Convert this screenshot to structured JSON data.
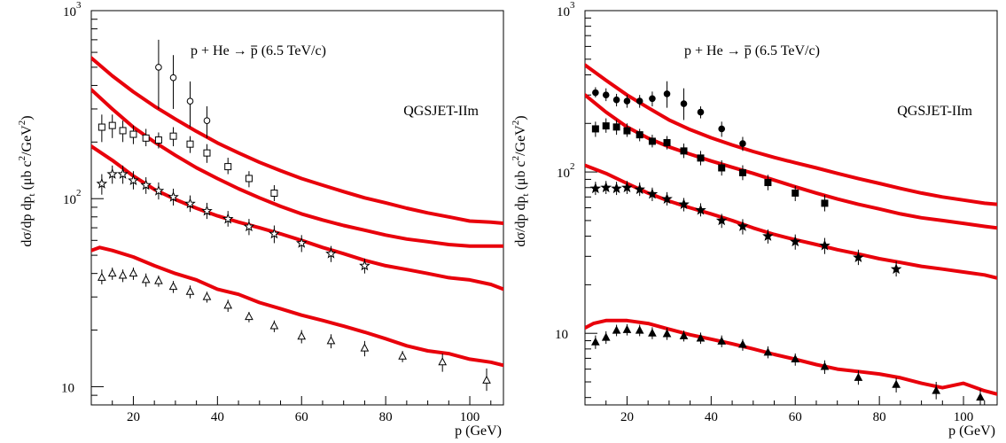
{
  "chart_data": [
    {
      "type": "scatter",
      "panel": "left",
      "title": "p + He → p̄ (6.5 TeV/c)",
      "model_label": "QGSJET-IIm",
      "xlabel": "p (GeV)",
      "ylabel": "dσ/dp dpt (μb c²/GeV²)",
      "xlim": [
        10,
        108
      ],
      "ylim": [
        8,
        1000
      ],
      "yscale": "log",
      "x_ticks": [
        20,
        40,
        60,
        80,
        100
      ],
      "y_ticks": [
        {
          "value": 10,
          "label": "10"
        },
        {
          "value": 100,
          "label": "10²"
        },
        {
          "value": 1000,
          "label": "10³"
        }
      ],
      "grid": false,
      "curves": [
        {
          "x": [
            10,
            15,
            20,
            25,
            30,
            35,
            40,
            45,
            50,
            55,
            60,
            65,
            70,
            75,
            80,
            85,
            90,
            95,
            100,
            105,
            108
          ],
          "y": [
            560,
            450,
            370,
            310,
            265,
            228,
            198,
            175,
            156,
            141,
            128,
            118,
            109,
            101,
            95,
            89,
            84,
            80,
            76,
            75,
            74
          ]
        },
        {
          "x": [
            10,
            15,
            20,
            25,
            30,
            35,
            40,
            45,
            50,
            55,
            60,
            65,
            70,
            75,
            80,
            85,
            90,
            95,
            100,
            105,
            108
          ],
          "y": [
            380,
            300,
            240,
            200,
            170,
            146,
            128,
            113,
            101,
            91,
            83,
            77,
            72,
            68,
            64,
            61,
            59,
            57,
            56,
            56,
            56
          ]
        },
        {
          "x": [
            10,
            15,
            20,
            25,
            30,
            35,
            40,
            45,
            50,
            55,
            60,
            65,
            70,
            75,
            80,
            85,
            90,
            95,
            100,
            105,
            108
          ],
          "y": [
            190,
            160,
            132,
            112,
            99,
            89,
            81,
            75,
            70,
            65,
            60,
            55,
            51,
            47,
            44,
            42,
            40,
            38,
            37,
            35,
            33
          ]
        },
        {
          "x": [
            10,
            12,
            15,
            20,
            25,
            30,
            35,
            40,
            45,
            50,
            55,
            60,
            65,
            70,
            75,
            80,
            85,
            90,
            95,
            100,
            105,
            108
          ],
          "y": [
            53,
            55,
            53,
            49,
            44,
            40,
            37,
            33,
            31,
            28,
            26,
            24,
            22.5,
            21,
            19.5,
            18,
            16.5,
            15.5,
            15,
            14,
            13.5,
            13
          ]
        }
      ],
      "series": [
        {
          "marker": "circle-open",
          "points": [
            [
              26,
              500,
              300,
              700
            ],
            [
              29.5,
              440,
              300,
              580
            ],
            [
              33.5,
              330,
              240,
              420
            ],
            [
              37.5,
              260,
              210,
              310
            ]
          ]
        },
        {
          "marker": "square-open",
          "points": [
            [
              12.5,
              240,
              200,
              280
            ],
            [
              15,
              245,
              210,
              280
            ],
            [
              17.5,
              230,
              200,
              260
            ],
            [
              20,
              220,
              195,
              245
            ],
            [
              23,
              210,
              190,
              235
            ],
            [
              26,
              205,
              185,
              225
            ],
            [
              29.5,
              215,
              190,
              240
            ],
            [
              33.5,
              195,
              175,
              215
            ],
            [
              37.5,
              175,
              155,
              195
            ],
            [
              42.5,
              148,
              135,
              165
            ],
            [
              47.5,
              128,
              115,
              140
            ],
            [
              53.5,
              107,
              97,
              118
            ]
          ]
        },
        {
          "marker": "star-open",
          "points": [
            [
              12.5,
              120,
              105,
              135
            ],
            [
              15,
              135,
              120,
              150
            ],
            [
              17.5,
              135,
              120,
              150
            ],
            [
              20,
              125,
              112,
              140
            ],
            [
              23,
              118,
              106,
              130
            ],
            [
              26,
              110,
              99,
              122
            ],
            [
              29.5,
              102,
              92,
              113
            ],
            [
              33.5,
              94,
              85,
              104
            ],
            [
              37.5,
              86,
              78,
              95
            ],
            [
              42.5,
              78,
              71,
              86
            ],
            [
              47.5,
              71,
              64,
              78
            ],
            [
              53.5,
              65,
              58,
              72
            ],
            [
              60,
              58,
              52,
              64
            ],
            [
              67,
              51,
              46,
              56
            ],
            [
              75,
              44,
              40,
              48
            ]
          ]
        },
        {
          "marker": "triangle-open",
          "points": [
            [
              12.5,
              38,
              35,
              42
            ],
            [
              15,
              40,
              37,
              43
            ],
            [
              17.5,
              39,
              36,
              42
            ],
            [
              20,
              40,
              37,
              43
            ],
            [
              23,
              37,
              34,
              40
            ],
            [
              26,
              36.5,
              34,
              39
            ],
            [
              29.5,
              34,
              31.5,
              36.5
            ],
            [
              33.5,
              32,
              29.5,
              34.5
            ],
            [
              37.5,
              30,
              28,
              32
            ],
            [
              42.5,
              27,
              25,
              29
            ],
            [
              47.5,
              23.5,
              22,
              25
            ],
            [
              53.5,
              21,
              19.5,
              22.5
            ],
            [
              60,
              18.5,
              17,
              20
            ],
            [
              67,
              17.5,
              16,
              19
            ],
            [
              75,
              16,
              14.5,
              17.5
            ],
            [
              84,
              14.5,
              13.5,
              15.5
            ],
            [
              93.5,
              13.5,
              12,
              15
            ],
            [
              104,
              10.8,
              9.5,
              12.5
            ]
          ]
        }
      ]
    },
    {
      "type": "scatter",
      "panel": "right",
      "title": "p + He → p̄ (6.5 TeV/c)",
      "model_label": "QGSJET-IIm",
      "xlabel": "p (GeV)",
      "ylabel": "dσ/dp dpt (μb c²/GeV²)",
      "xlim": [
        10,
        108
      ],
      "ylim": [
        3.6,
        1000
      ],
      "yscale": "log",
      "x_ticks": [
        20,
        40,
        60,
        80,
        100
      ],
      "y_ticks": [
        {
          "value": 10,
          "label": "10"
        },
        {
          "value": 100,
          "label": "10²"
        },
        {
          "value": 1000,
          "label": "10³"
        }
      ],
      "grid": false,
      "curves": [
        {
          "x": [
            10,
            15,
            20,
            25,
            30,
            35,
            40,
            45,
            50,
            55,
            60,
            65,
            70,
            75,
            80,
            85,
            90,
            95,
            100,
            105,
            108
          ],
          "y": [
            460,
            370,
            300,
            250,
            210,
            183,
            163,
            147,
            134,
            123,
            114,
            106,
            98,
            91,
            85,
            79,
            74,
            70,
            67,
            64,
            63
          ]
        },
        {
          "x": [
            10,
            15,
            20,
            25,
            30,
            35,
            40,
            45,
            50,
            55,
            60,
            65,
            70,
            75,
            80,
            85,
            90,
            95,
            100,
            105,
            108
          ],
          "y": [
            300,
            235,
            190,
            162,
            143,
            129,
            117,
            107,
            98,
            89,
            81,
            74,
            68,
            63,
            59,
            55,
            52,
            50,
            48,
            46,
            45
          ]
        },
        {
          "x": [
            10,
            15,
            20,
            25,
            30,
            35,
            40,
            45,
            50,
            55,
            60,
            65,
            70,
            75,
            80,
            85,
            90,
            95,
            100,
            105,
            108
          ],
          "y": [
            110,
            98,
            85,
            74,
            66,
            60,
            55,
            50,
            45,
            41,
            38,
            35.5,
            33,
            31,
            29,
            27.5,
            26,
            25,
            24,
            23,
            22
          ]
        },
        {
          "x": [
            10,
            12,
            15,
            20,
            25,
            30,
            35,
            40,
            45,
            50,
            55,
            60,
            65,
            70,
            75,
            80,
            85,
            90,
            95,
            100,
            105,
            108
          ],
          "y": [
            10.8,
            11.5,
            12,
            12,
            11.5,
            10.6,
            9.8,
            9.2,
            8.6,
            8.0,
            7.4,
            6.9,
            6.4,
            6.0,
            5.8,
            5.6,
            5.3,
            4.9,
            4.6,
            4.9,
            4.4,
            4.2
          ]
        }
      ],
      "series": [
        {
          "marker": "circle-filled",
          "points": [
            [
              12.5,
              310,
              290,
              335
            ],
            [
              15,
              300,
              275,
              330
            ],
            [
              17.5,
              280,
              255,
              305
            ],
            [
              20,
              275,
              250,
              300
            ],
            [
              23,
              275,
              250,
              300
            ],
            [
              26,
              285,
              255,
              315
            ],
            [
              29.5,
              305,
              250,
              365
            ],
            [
              33.5,
              265,
              210,
              330
            ],
            [
              37.5,
              235,
              215,
              255
            ],
            [
              42.5,
              185,
              165,
              205
            ],
            [
              47.5,
              150,
              135,
              165
            ]
          ]
        },
        {
          "marker": "square-filled",
          "points": [
            [
              12.5,
              185,
              165,
              205
            ],
            [
              15,
              193,
              175,
              215
            ],
            [
              17.5,
              190,
              170,
              210
            ],
            [
              20,
              180,
              165,
              200
            ],
            [
              23,
              170,
              155,
              185
            ],
            [
              26,
              155,
              142,
              170
            ],
            [
              29.5,
              152,
              138,
              167
            ],
            [
              33.5,
              135,
              122,
              150
            ],
            [
              37.5,
              122,
              110,
              135
            ],
            [
              42.5,
              106,
              95,
              118
            ],
            [
              47.5,
              99,
              89,
              110
            ],
            [
              53.5,
              86,
              77,
              96
            ],
            [
              60,
              74,
              66,
              82
            ],
            [
              67,
              64,
              57,
              72
            ]
          ]
        },
        {
          "marker": "star-filled",
          "points": [
            [
              12.5,
              79,
              72,
              87
            ],
            [
              15,
              80,
              73,
              88
            ],
            [
              17.5,
              79,
              72,
              87
            ],
            [
              20,
              80,
              73,
              88
            ],
            [
              23,
              78,
              71,
              86
            ],
            [
              26,
              73,
              66,
              80
            ],
            [
              29.5,
              68,
              62,
              75
            ],
            [
              33.5,
              63,
              57,
              69
            ],
            [
              37.5,
              58,
              53,
              64
            ],
            [
              42.5,
              50,
              45,
              55
            ],
            [
              47.5,
              46,
              41,
              51
            ],
            [
              53.5,
              40,
              36,
              44
            ],
            [
              60,
              37,
              33,
              41
            ],
            [
              67,
              35,
              31,
              39
            ],
            [
              75,
              29.5,
              26.5,
              33
            ],
            [
              84,
              25,
              22.5,
              28
            ]
          ]
        },
        {
          "marker": "triangle-filled",
          "points": [
            [
              12.5,
              8.8,
              8.0,
              9.7
            ],
            [
              15,
              9.4,
              8.6,
              10.3
            ],
            [
              17.5,
              10.4,
              9.6,
              11.3
            ],
            [
              20,
              10.5,
              9.7,
              11.4
            ],
            [
              23,
              10.4,
              9.6,
              11.3
            ],
            [
              26,
              10.0,
              9.2,
              10.9
            ],
            [
              29.5,
              9.9,
              9.1,
              10.8
            ],
            [
              33.5,
              9.6,
              8.9,
              10.4
            ],
            [
              37.5,
              9.3,
              8.6,
              10.1
            ],
            [
              42.5,
              8.9,
              8.2,
              9.7
            ],
            [
              47.5,
              8.5,
              7.8,
              9.2
            ],
            [
              53.5,
              7.6,
              7.0,
              8.3
            ],
            [
              60,
              6.9,
              6.3,
              7.5
            ],
            [
              67,
              6.2,
              5.6,
              6.8
            ],
            [
              75,
              5.3,
              4.8,
              5.9
            ],
            [
              84,
              4.8,
              4.3,
              5.3
            ],
            [
              93.5,
              4.4,
              3.9,
              5.0
            ],
            [
              104,
              4.0,
              3.6,
              4.5
            ]
          ]
        }
      ]
    }
  ]
}
